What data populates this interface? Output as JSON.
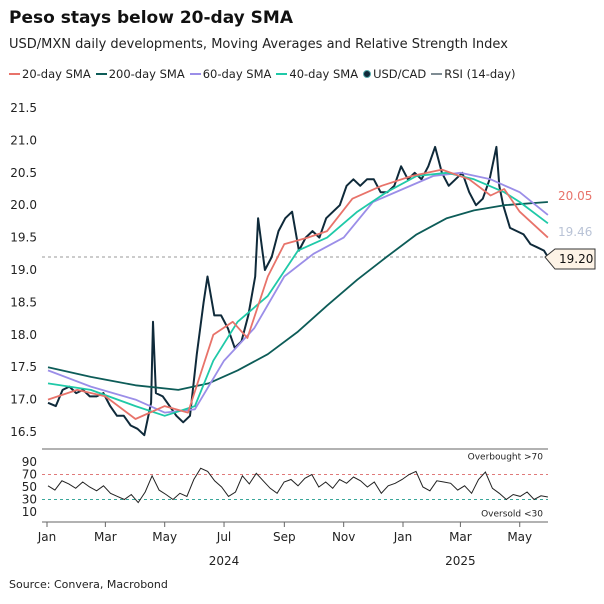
{
  "title": "Peso stays below 20-day SMA",
  "subtitle": "USD/MXN daily developments, Moving Averages and Relative Strength Index",
  "source": "Source: Convera, Macrobond",
  "legend": [
    {
      "label": "20-day SMA",
      "color": "#e8736a"
    },
    {
      "label": "200-day SMA",
      "color": "#0d5c58"
    },
    {
      "label": "60-day SMA",
      "color": "#9b8ee8"
    },
    {
      "label": "40-day SMA",
      "color": "#1fc9a8"
    },
    {
      "label": "USD/CAD",
      "color": "#0f2a3a",
      "marker": "dot"
    },
    {
      "label": "RSI (14-day)",
      "color": "#7f8c93"
    }
  ],
  "chart_data": [
    {
      "type": "line",
      "ylim": [
        16.4,
        21.6
      ],
      "yticks": [
        "16.5",
        "17.0",
        "17.5",
        "18.0",
        "18.5",
        "19.0",
        "19.5",
        "20.0",
        "20.5",
        "21.0",
        "21.5"
      ],
      "reference_line": {
        "value": 19.2,
        "style": "dashed"
      },
      "end_labels": [
        {
          "text": "20.05",
          "color": "#e8736a",
          "value": 20.05
        },
        {
          "text": "19.46",
          "color": "#b9c3d6",
          "value": 19.46
        },
        {
          "text": "19.20",
          "color": "#111",
          "value": 19.2,
          "boxed": true
        }
      ],
      "xticks": [
        "Jan",
        "Mar",
        "May",
        "Jul",
        "Sep",
        "Nov",
        "Jan",
        "Mar",
        "May"
      ],
      "xtick_dates": [
        "2024-01-01",
        "2024-03-01",
        "2024-05-01",
        "2024-07-01",
        "2024-09-01",
        "2024-11-01",
        "2025-01-01",
        "2025-03-01",
        "2025-05-01"
      ],
      "year_labels": [
        {
          "text": "2024",
          "date": "2024-07-01"
        },
        {
          "text": "2025",
          "date": "2025-03-01"
        }
      ],
      "series": [
        {
          "name": "USD/CAD",
          "color": "#0f2a3a",
          "points": [
            [
              "2024-01-02",
              16.95
            ],
            [
              "2024-01-10",
              16.9
            ],
            [
              "2024-01-17",
              17.15
            ],
            [
              "2024-01-24",
              17.2
            ],
            [
              "2024-01-31",
              17.1
            ],
            [
              "2024-02-07",
              17.15
            ],
            [
              "2024-02-14",
              17.05
            ],
            [
              "2024-02-21",
              17.05
            ],
            [
              "2024-02-28",
              17.1
            ],
            [
              "2024-03-06",
              16.9
            ],
            [
              "2024-03-13",
              16.75
            ],
            [
              "2024-03-20",
              16.75
            ],
            [
              "2024-03-27",
              16.6
            ],
            [
              "2024-04-03",
              16.55
            ],
            [
              "2024-04-10",
              16.45
            ],
            [
              "2024-04-17",
              16.95
            ],
            [
              "2024-04-19",
              18.2
            ],
            [
              "2024-04-22",
              17.1
            ],
            [
              "2024-04-29",
              17.05
            ],
            [
              "2024-05-06",
              16.9
            ],
            [
              "2024-05-13",
              16.75
            ],
            [
              "2024-05-20",
              16.65
            ],
            [
              "2024-05-27",
              16.75
            ],
            [
              "2024-06-03",
              17.7
            ],
            [
              "2024-06-10",
              18.5
            ],
            [
              "2024-06-14",
              18.9
            ],
            [
              "2024-06-21",
              18.3
            ],
            [
              "2024-06-28",
              18.3
            ],
            [
              "2024-07-05",
              18.1
            ],
            [
              "2024-07-12",
              17.8
            ],
            [
              "2024-07-19",
              17.9
            ],
            [
              "2024-07-26",
              18.3
            ],
            [
              "2024-08-02",
              18.9
            ],
            [
              "2024-08-05",
              19.8
            ],
            [
              "2024-08-12",
              19.0
            ],
            [
              "2024-08-19",
              19.2
            ],
            [
              "2024-08-26",
              19.6
            ],
            [
              "2024-09-02",
              19.8
            ],
            [
              "2024-09-09",
              19.9
            ],
            [
              "2024-09-16",
              19.3
            ],
            [
              "2024-09-23",
              19.5
            ],
            [
              "2024-09-30",
              19.6
            ],
            [
              "2024-10-07",
              19.5
            ],
            [
              "2024-10-14",
              19.8
            ],
            [
              "2024-10-21",
              19.9
            ],
            [
              "2024-10-28",
              20.0
            ],
            [
              "2024-11-04",
              20.3
            ],
            [
              "2024-11-11",
              20.4
            ],
            [
              "2024-11-18",
              20.3
            ],
            [
              "2024-11-25",
              20.4
            ],
            [
              "2024-12-02",
              20.4
            ],
            [
              "2024-12-09",
              20.2
            ],
            [
              "2024-12-16",
              20.2
            ],
            [
              "2024-12-23",
              20.3
            ],
            [
              "2024-12-30",
              20.6
            ],
            [
              "2025-01-06",
              20.4
            ],
            [
              "2025-01-13",
              20.5
            ],
            [
              "2025-01-20",
              20.4
            ],
            [
              "2025-01-27",
              20.6
            ],
            [
              "2025-02-03",
              20.9
            ],
            [
              "2025-02-10",
              20.5
            ],
            [
              "2025-02-17",
              20.3
            ],
            [
              "2025-02-24",
              20.4
            ],
            [
              "2025-03-03",
              20.5
            ],
            [
              "2025-03-10",
              20.2
            ],
            [
              "2025-03-17",
              20.0
            ],
            [
              "2025-03-24",
              20.1
            ],
            [
              "2025-03-31",
              20.4
            ],
            [
              "2025-04-07",
              20.9
            ],
            [
              "2025-04-10",
              20.3
            ],
            [
              "2025-04-14",
              20.0
            ],
            [
              "2025-04-21",
              19.65
            ],
            [
              "2025-04-28",
              19.6
            ],
            [
              "2025-05-05",
              19.55
            ],
            [
              "2025-05-12",
              19.4
            ],
            [
              "2025-05-19",
              19.35
            ],
            [
              "2025-05-26",
              19.3
            ],
            [
              "2025-05-30",
              19.2
            ]
          ]
        },
        {
          "name": "200-day SMA",
          "color": "#0d5c58",
          "points": [
            [
              "2024-01-02",
              17.5
            ],
            [
              "2024-02-15",
              17.35
            ],
            [
              "2024-04-01",
              17.22
            ],
            [
              "2024-05-15",
              17.15
            ],
            [
              "2024-06-15",
              17.25
            ],
            [
              "2024-07-15",
              17.45
            ],
            [
              "2024-08-15",
              17.7
            ],
            [
              "2024-09-15",
              18.05
            ],
            [
              "2024-10-15",
              18.45
            ],
            [
              "2024-11-15",
              18.85
            ],
            [
              "2024-12-15",
              19.2
            ],
            [
              "2025-01-15",
              19.55
            ],
            [
              "2025-02-15",
              19.8
            ],
            [
              "2025-03-15",
              19.92
            ],
            [
              "2025-04-15",
              20.0
            ],
            [
              "2025-05-30",
              20.05
            ]
          ]
        },
        {
          "name": "60-day SMA",
          "color": "#9b8ee8",
          "points": [
            [
              "2024-01-02",
              17.45
            ],
            [
              "2024-02-15",
              17.2
            ],
            [
              "2024-04-01",
              17.0
            ],
            [
              "2024-05-01",
              16.8
            ],
            [
              "2024-06-01",
              16.85
            ],
            [
              "2024-07-01",
              17.6
            ],
            [
              "2024-08-01",
              18.1
            ],
            [
              "2024-09-01",
              18.9
            ],
            [
              "2024-10-01",
              19.25
            ],
            [
              "2024-11-01",
              19.5
            ],
            [
              "2024-12-01",
              20.05
            ],
            [
              "2025-01-01",
              20.25
            ],
            [
              "2025-02-01",
              20.45
            ],
            [
              "2025-03-01",
              20.5
            ],
            [
              "2025-04-01",
              20.4
            ],
            [
              "2025-05-01",
              20.2
            ],
            [
              "2025-05-30",
              19.85
            ]
          ]
        },
        {
          "name": "40-day SMA",
          "color": "#1fc9a8",
          "points": [
            [
              "2024-01-02",
              17.25
            ],
            [
              "2024-02-15",
              17.15
            ],
            [
              "2024-04-01",
              16.9
            ],
            [
              "2024-05-01",
              16.75
            ],
            [
              "2024-06-01",
              16.9
            ],
            [
              "2024-06-20",
              17.6
            ],
            [
              "2024-07-15",
              18.2
            ],
            [
              "2024-08-15",
              18.6
            ],
            [
              "2024-09-15",
              19.3
            ],
            [
              "2024-10-15",
              19.5
            ],
            [
              "2024-11-15",
              19.9
            ],
            [
              "2024-12-15",
              20.2
            ],
            [
              "2025-01-15",
              20.45
            ],
            [
              "2025-02-15",
              20.5
            ],
            [
              "2025-03-15",
              20.4
            ],
            [
              "2025-04-15",
              20.2
            ],
            [
              "2025-05-01",
              20.05
            ],
            [
              "2025-05-30",
              19.72
            ]
          ]
        },
        {
          "name": "20-day SMA",
          "color": "#e8736a",
          "points": [
            [
              "2024-01-02",
              17.0
            ],
            [
              "2024-02-01",
              17.15
            ],
            [
              "2024-03-01",
              17.05
            ],
            [
              "2024-04-01",
              16.7
            ],
            [
              "2024-05-01",
              16.9
            ],
            [
              "2024-05-25",
              16.8
            ],
            [
              "2024-06-20",
              18.0
            ],
            [
              "2024-07-10",
              18.2
            ],
            [
              "2024-07-25",
              17.95
            ],
            [
              "2024-08-15",
              18.9
            ],
            [
              "2024-09-01",
              19.4
            ],
            [
              "2024-09-25",
              19.5
            ],
            [
              "2024-10-15",
              19.6
            ],
            [
              "2024-11-10",
              20.1
            ],
            [
              "2024-12-10",
              20.3
            ],
            [
              "2025-01-10",
              20.45
            ],
            [
              "2025-02-10",
              20.55
            ],
            [
              "2025-03-10",
              20.4
            ],
            [
              "2025-04-01",
              20.15
            ],
            [
              "2025-04-15",
              20.25
            ],
            [
              "2025-05-01",
              19.9
            ],
            [
              "2025-05-30",
              19.5
            ]
          ]
        }
      ]
    },
    {
      "type": "line",
      "name": "RSI (14-day)",
      "ylim": [
        5,
        95
      ],
      "yticks": [
        "10",
        "30",
        "50",
        "70",
        "90"
      ],
      "thresholds": [
        {
          "value": 70,
          "label": "Overbought >70",
          "color": "#e07a7a"
        },
        {
          "value": 30,
          "label": "Oversold <30",
          "color": "#3aa79a"
        }
      ],
      "values": [
        52,
        45,
        60,
        55,
        48,
        58,
        50,
        44,
        52,
        40,
        35,
        30,
        38,
        25,
        42,
        68,
        45,
        38,
        30,
        40,
        35,
        62,
        80,
        75,
        60,
        50,
        35,
        42,
        68,
        55,
        72,
        60,
        48,
        40,
        58,
        62,
        52,
        64,
        70,
        50,
        58,
        48,
        62,
        56,
        66,
        60,
        50,
        58,
        40,
        52,
        56,
        62,
        70,
        75,
        50,
        44,
        60,
        58,
        56,
        45,
        52,
        40,
        62,
        74,
        48,
        40,
        30,
        38,
        35,
        42,
        30,
        36,
        34
      ]
    }
  ]
}
